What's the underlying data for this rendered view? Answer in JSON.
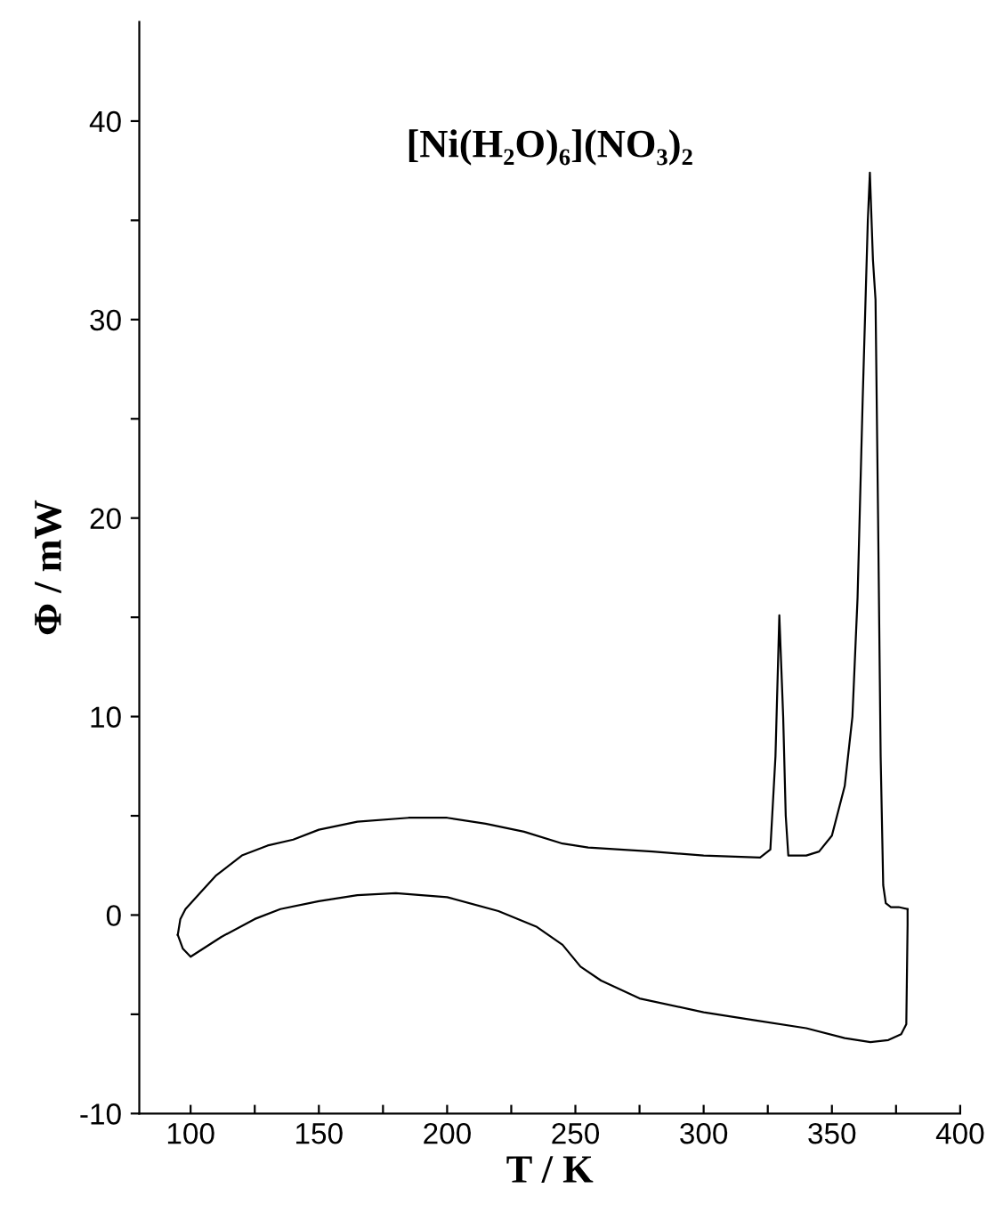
{
  "chart_data": {
    "type": "line",
    "title": "[Ni(H₂O)₆](NO₃)₂",
    "xlabel": "T / K",
    "ylabel": "Φ / mW",
    "xlim": [
      80,
      400
    ],
    "ylim": [
      -10,
      45
    ],
    "xticks": [
      100,
      {
        "value": 125,
        "label": null
      },
      150,
      {
        "value": 175,
        "label": null
      },
      200,
      {
        "value": 225,
        "label": null
      },
      250,
      {
        "value": 275,
        "label": null
      },
      300,
      {
        "value": 325,
        "label": null
      },
      350,
      {
        "value": 375,
        "label": null
      },
      400
    ],
    "yticks": [
      -10,
      {
        "value": -5,
        "label": null
      },
      0,
      {
        "value": 5,
        "label": null
      },
      10,
      {
        "value": 15,
        "label": null
      },
      20,
      {
        "value": 25,
        "label": null
      },
      30,
      {
        "value": 35,
        "label": null
      },
      40
    ],
    "grid": false,
    "legend": false,
    "series": [
      {
        "color": "#000000",
        "x": [
          95,
          96,
          98,
          105,
          110,
          120,
          130,
          140,
          150,
          165,
          185,
          200,
          215,
          230,
          245,
          255,
          280,
          300,
          322,
          326,
          328,
          329.5,
          331,
          332,
          333,
          340,
          345,
          350,
          355,
          358,
          360,
          362,
          364,
          364.8,
          366,
          367,
          368,
          369,
          370,
          371,
          373,
          376,
          379.5
        ],
        "values": [
          -1.0,
          -0.2,
          0.3,
          1.3,
          2.0,
          3.0,
          3.5,
          3.8,
          4.3,
          4.7,
          4.9,
          4.9,
          4.6,
          4.2,
          3.6,
          3.4,
          3.2,
          3.0,
          2.9,
          3.3,
          8,
          15.1,
          10,
          5,
          3.0,
          3.0,
          3.2,
          4.0,
          6.5,
          10,
          16,
          26,
          35,
          37.4,
          33,
          31,
          20,
          8,
          1.5,
          0.6,
          0.4,
          0.4,
          0.3
        ]
      },
      {
        "color": "#000000",
        "x": [
          379.5,
          379.5,
          379,
          377,
          372,
          365,
          355,
          340,
          320,
          300,
          275,
          260,
          252,
          245,
          235,
          220,
          200,
          180,
          165,
          150,
          135,
          125,
          112,
          100,
          97,
          95
        ],
        "values": [
          0.3,
          -0.5,
          -5.5,
          -6.0,
          -6.3,
          -6.4,
          -6.2,
          -5.7,
          -5.3,
          -4.9,
          -4.2,
          -3.3,
          -2.6,
          -1.5,
          -0.6,
          0.2,
          0.9,
          1.1,
          1.0,
          0.7,
          0.3,
          -0.2,
          -1.1,
          -2.1,
          -1.7,
          -1.0
        ]
      }
    ]
  }
}
